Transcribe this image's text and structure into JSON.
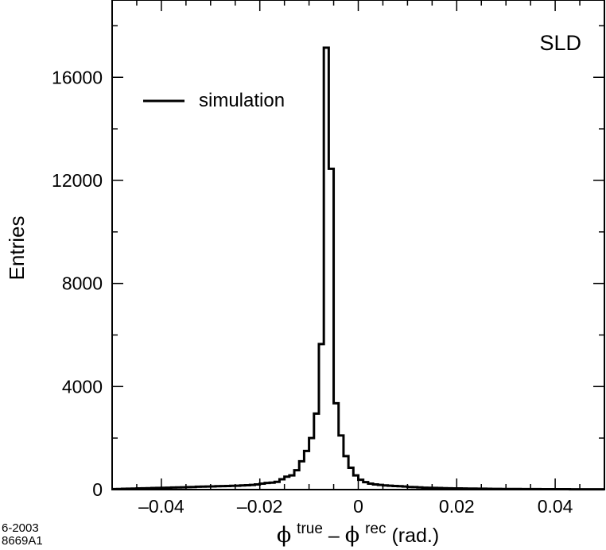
{
  "chart_data": {
    "type": "histogram",
    "experiment_label": "SLD",
    "xlabel": {
      "phi_1": "ϕ",
      "sup_1": "true",
      "minus": " – ",
      "phi_2": "ϕ",
      "sup_2": "rec",
      "unit": " (rad.)"
    },
    "ylabel": "Entries",
    "xlim": [
      -0.05,
      0.05
    ],
    "ylim": [
      0,
      19000
    ],
    "x_ticks": [
      -0.04,
      -0.02,
      0,
      0.02,
      0.04
    ],
    "x_tick_labels": [
      "–0.04",
      "–0.02",
      "0",
      "0.02",
      "0.04"
    ],
    "y_ticks": [
      0,
      4000,
      8000,
      12000,
      16000
    ],
    "y_tick_labels": [
      "0",
      "4000",
      "8000",
      "12000",
      "16000"
    ],
    "legend": {
      "position": "top-left",
      "entries": [
        {
          "label": "simulation",
          "style": "solid-line"
        }
      ]
    },
    "bin_width": 0.001,
    "series": [
      {
        "name": "simulation",
        "bin_edges_start": -0.05,
        "values": [
          20,
          25,
          30,
          35,
          40,
          45,
          50,
          55,
          60,
          65,
          70,
          75,
          80,
          85,
          90,
          95,
          100,
          110,
          115,
          120,
          125,
          130,
          135,
          140,
          145,
          150,
          160,
          170,
          180,
          200,
          230,
          260,
          270,
          300,
          400,
          500,
          550,
          750,
          1100,
          1500,
          2000,
          2950,
          5650,
          17150,
          12450,
          3350,
          2100,
          1300,
          850,
          550,
          380,
          290,
          230,
          200,
          180,
          160,
          150,
          140,
          130,
          120,
          100,
          95,
          85,
          75,
          70,
          65,
          60,
          55,
          50,
          48,
          45,
          42,
          40,
          38,
          35,
          33,
          30,
          28,
          26,
          25,
          24,
          23,
          22,
          21,
          20,
          19,
          18,
          17,
          16,
          15,
          15,
          14,
          14,
          13,
          13,
          12,
          12,
          11,
          11,
          10
        ]
      }
    ]
  },
  "stamp": {
    "date": "6-2003",
    "code": "8669A1"
  }
}
